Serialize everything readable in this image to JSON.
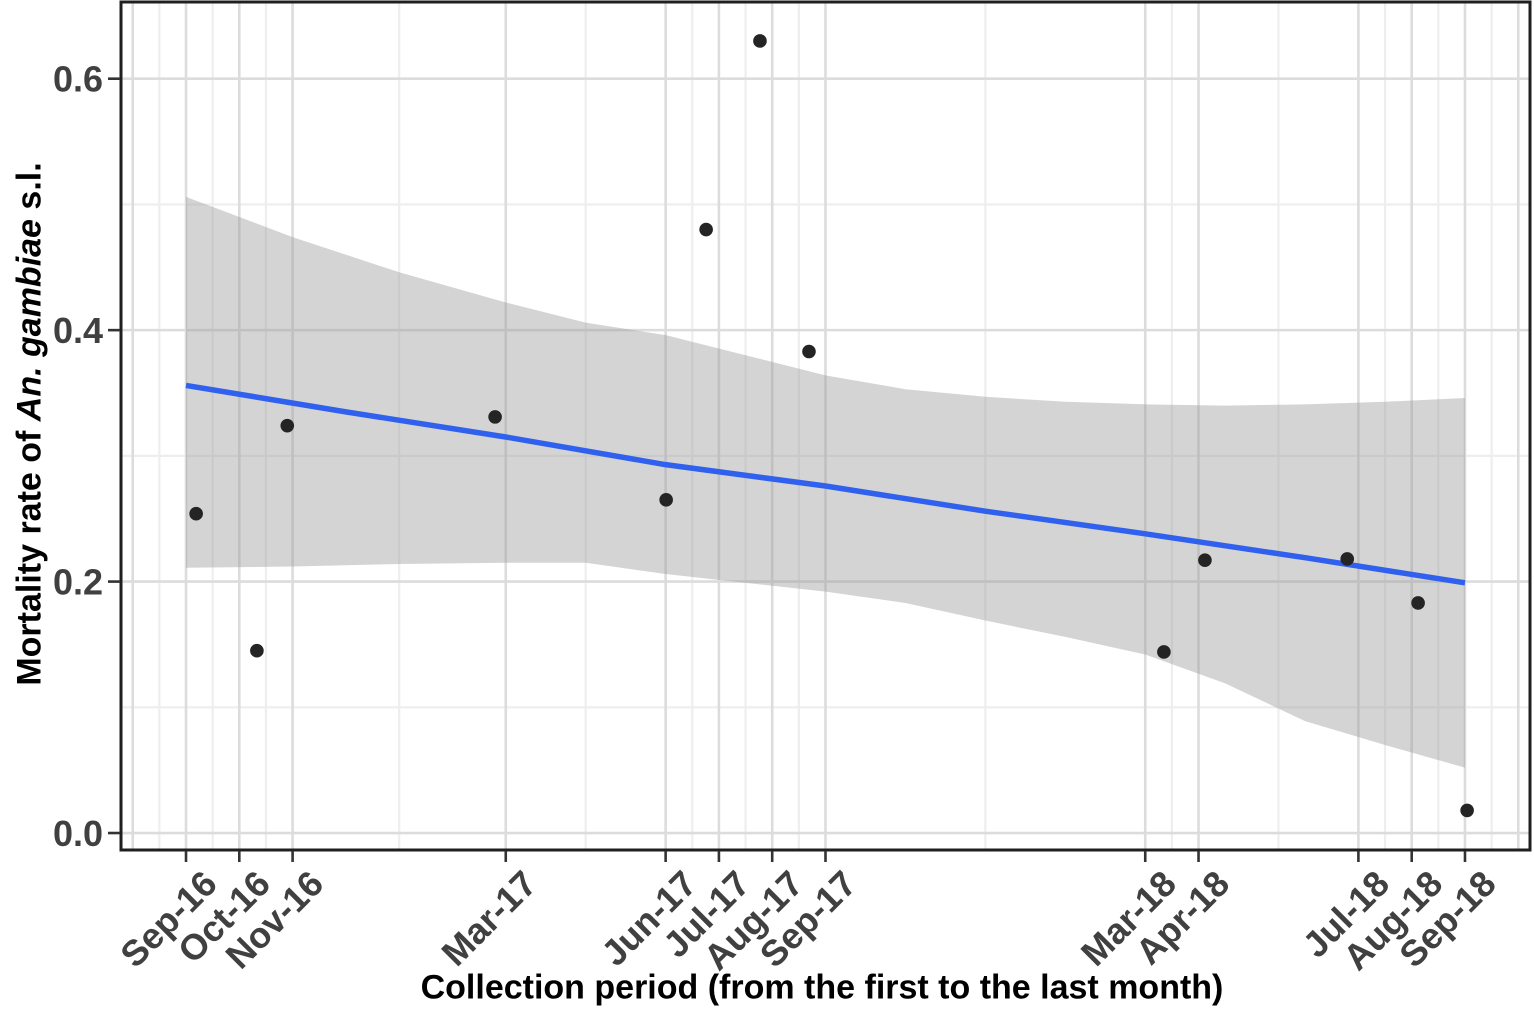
{
  "figure": {
    "xlabel": "Collection period (from the first to the last month)",
    "ylabel_full": "Mortality rate of An. gambiae s.l.",
    "ylabel_parts": [
      {
        "text": "Mortality rate of ",
        "italic": false
      },
      {
        "text": "An. gambiae",
        "italic": true
      },
      {
        "text": " s.l.",
        "italic": false
      }
    ]
  },
  "chart_data": {
    "type": "scatter",
    "title": "",
    "xlabel": "Collection period (from the first to the last month)",
    "ylabel": "Mortality rate of An. gambiae s.l.",
    "legend": "none",
    "x_axis": {
      "unit": "months since Sep-2016",
      "lim": [
        -1.22,
        25.22
      ],
      "ticks": [
        {
          "m": 0,
          "label": "Sep-16"
        },
        {
          "m": 1,
          "label": "Oct-16"
        },
        {
          "m": 2,
          "label": "Nov-16"
        },
        {
          "m": 6,
          "label": "Mar-17"
        },
        {
          "m": 9,
          "label": "Jun-17"
        },
        {
          "m": 10,
          "label": "Jul-17"
        },
        {
          "m": 11,
          "label": "Aug-17"
        },
        {
          "m": 12,
          "label": "Sep-17"
        },
        {
          "m": 18,
          "label": "Mar-18"
        },
        {
          "m": 19,
          "label": "Apr-18"
        },
        {
          "m": 22,
          "label": "Jul-18"
        },
        {
          "m": 23,
          "label": "Aug-18"
        },
        {
          "m": 24,
          "label": "Sep-18"
        }
      ],
      "unlabeled_breaks": [
        -1,
        25
      ]
    },
    "y_axis": {
      "lim": [
        -0.0135,
        0.661
      ],
      "ticks": [
        {
          "v": 0.0,
          "label": "0.0"
        },
        {
          "v": 0.2,
          "label": "0.2"
        },
        {
          "v": 0.4,
          "label": "0.4"
        },
        {
          "v": 0.6,
          "label": "0.6"
        }
      ],
      "minor": [
        0.1,
        0.3,
        0.5
      ]
    },
    "grid": {
      "major": true,
      "minor": true
    },
    "points": [
      {
        "label": "Sep-16",
        "m": 0.19,
        "value": 0.254
      },
      {
        "label": "Oct-16",
        "m": 1.33,
        "value": 0.145
      },
      {
        "label": "Nov-16",
        "m": 1.9,
        "value": 0.324
      },
      {
        "label": "Mar-17",
        "m": 5.8,
        "value": 0.331
      },
      {
        "label": "Jun-17",
        "m": 9.01,
        "value": 0.265
      },
      {
        "label": "Jul-17",
        "m": 9.76,
        "value": 0.48
      },
      {
        "label": "Aug-17",
        "m": 10.77,
        "value": 0.63
      },
      {
        "label": "Sep-17",
        "m": 11.69,
        "value": 0.383
      },
      {
        "label": "Mar-18",
        "m": 18.35,
        "value": 0.144
      },
      {
        "label": "Apr-18",
        "m": 19.12,
        "value": 0.217
      },
      {
        "label": "Jul-18",
        "m": 21.79,
        "value": 0.218
      },
      {
        "label": "Aug-18",
        "m": 23.12,
        "value": 0.183
      },
      {
        "label": "Sep-18",
        "m": 24.04,
        "value": 0.018
      }
    ],
    "trend_line": [
      [
        0,
        0.356
      ],
      [
        3,
        0.335
      ],
      [
        6,
        0.315
      ],
      [
        9,
        0.293
      ],
      [
        12,
        0.276
      ],
      [
        15,
        0.256
      ],
      [
        18,
        0.238
      ],
      [
        21,
        0.219
      ],
      [
        24,
        0.199
      ]
    ],
    "confidence_band": [
      [
        0,
        0.211,
        0.506
      ],
      [
        2,
        0.212,
        0.474
      ],
      [
        4,
        0.214,
        0.446
      ],
      [
        6,
        0.215,
        0.422
      ],
      [
        7.5,
        0.215,
        0.406
      ],
      [
        9,
        0.206,
        0.396
      ],
      [
        10.5,
        0.199,
        0.38
      ],
      [
        12,
        0.192,
        0.364
      ],
      [
        13.5,
        0.183,
        0.353
      ],
      [
        15,
        0.169,
        0.347
      ],
      [
        16.5,
        0.156,
        0.343
      ],
      [
        18,
        0.142,
        0.341
      ],
      [
        19.5,
        0.119,
        0.34
      ],
      [
        21,
        0.089,
        0.341
      ],
      [
        22.5,
        0.07,
        0.343
      ],
      [
        24,
        0.052,
        0.346
      ]
    ],
    "colors": {
      "trend": "#3061ee",
      "band": "rgba(153,153,153,0.42)",
      "point": "#242424",
      "grid_major": "#dcdcdc",
      "grid_minor": "#eeeeee",
      "panel_border": "#1f1f1f",
      "tick_mark": "#333333",
      "tick_text": "#404040",
      "title_text": "#000000",
      "background": "#ffffff"
    }
  }
}
